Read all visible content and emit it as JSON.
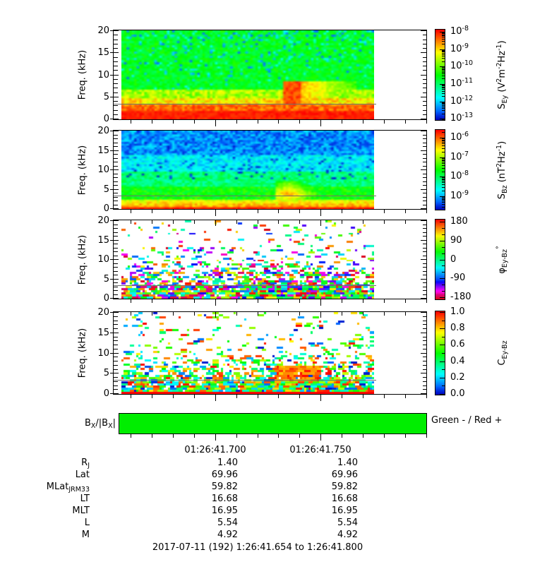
{
  "footer": "2017-07-11 (192) 1:26:41.654 to 1:26:41.800",
  "time_axis": {
    "start_label": "1:26:41.654",
    "end_label": "1:26:41.800",
    "major_ticks": [
      {
        "label": "01:26:41.700",
        "frac": 0.3151
      },
      {
        "label": "01:26:41.750",
        "frac": 0.6575
      }
    ]
  },
  "freq_axis": {
    "label": "Freq. (kHz)",
    "tick_labels": [
      "0",
      "5",
      "10",
      "15",
      "20"
    ],
    "range_khz": [
      0,
      20
    ]
  },
  "marker_line_khz": 3.5,
  "panels": [
    {
      "id": "sey",
      "colorbar": {
        "scale": "log",
        "base": "10",
        "exponents": [
          "-8",
          "-9",
          "-10",
          "-11",
          "-12",
          "-13"
        ],
        "fracs": [
          0.023,
          0.215,
          0.408,
          0.6,
          0.793,
          0.985
        ],
        "label_segments": [
          [
            "n",
            "S"
          ],
          [
            "sub",
            "Ey"
          ],
          [
            "n",
            " (V"
          ],
          [
            "sup",
            "2"
          ],
          [
            "n",
            "m"
          ],
          [
            "sup",
            "-2"
          ],
          [
            "n",
            "Hz"
          ],
          [
            "sup",
            "-1"
          ],
          [
            "n",
            ")"
          ]
        ]
      }
    },
    {
      "id": "sbz",
      "colorbar": {
        "scale": "log",
        "base": "10",
        "exponents": [
          "-6",
          "-7",
          "-8",
          "-9"
        ],
        "fracs": [
          0.097,
          0.345,
          0.584,
          0.832
        ],
        "label_segments": [
          [
            "n",
            "S"
          ],
          [
            "sub",
            "Bz"
          ],
          [
            "n",
            " (nT"
          ],
          [
            "sup",
            "2"
          ],
          [
            "n",
            "Hz"
          ],
          [
            "sup",
            "-1"
          ],
          [
            "n",
            ")"
          ]
        ]
      }
    },
    {
      "id": "phase",
      "colorbar": {
        "scale": "linear",
        "tick_labels": [
          "180",
          "90",
          "0",
          "-90",
          "-180"
        ],
        "fracs": [
          0.03,
          0.265,
          0.5,
          0.735,
          0.97
        ],
        "minors_between": 2,
        "label_segments": [
          [
            "n",
            "φ"
          ],
          [
            "sub",
            "Ey-Bz"
          ],
          [
            "sup",
            "°"
          ]
        ]
      }
    },
    {
      "id": "coh",
      "colorbar": {
        "scale": "linear",
        "tick_labels": [
          "1.0",
          "0.8",
          "0.6",
          "0.4",
          "0.2",
          "0.0"
        ],
        "fracs": [
          0.01,
          0.206,
          0.402,
          0.598,
          0.794,
          0.99
        ],
        "minors_between": 1,
        "label_segments": [
          [
            "n",
            "C"
          ],
          [
            "sub",
            "Ey-Bz"
          ]
        ]
      }
    }
  ],
  "bx_bar": {
    "label_segments": [
      [
        "n",
        "B"
      ],
      [
        "sub",
        "X"
      ],
      [
        "n",
        "/|B"
      ],
      [
        "sub",
        "X"
      ],
      [
        "n",
        "|"
      ]
    ],
    "legend": "Green - / Red +",
    "color": "#00ee00",
    "value": "negative (green) for entire interval"
  },
  "ephemeris": {
    "rows": [
      {
        "label_segments": [
          [
            "n",
            "R"
          ],
          [
            "sub",
            "J"
          ]
        ],
        "values": [
          "1.40",
          "1.40"
        ]
      },
      {
        "label_segments": [
          [
            "n",
            "Lat"
          ]
        ],
        "values": [
          "69.96",
          "69.96"
        ]
      },
      {
        "label_segments": [
          [
            "n",
            "MLat"
          ],
          [
            "sub",
            "JRM33"
          ]
        ],
        "values": [
          "59.82",
          "59.82"
        ]
      },
      {
        "label_segments": [
          [
            "n",
            "LT"
          ]
        ],
        "values": [
          "16.68",
          "16.68"
        ]
      },
      {
        "label_segments": [
          [
            "n",
            "MLT"
          ]
        ],
        "values": [
          "16.95",
          "16.95"
        ]
      },
      {
        "label_segments": [
          [
            "n",
            "L"
          ]
        ],
        "values": [
          "5.54",
          "5.54"
        ]
      },
      {
        "label_segments": [
          [
            "n",
            "M"
          ]
        ],
        "values": [
          "4.92",
          "4.92"
        ]
      }
    ]
  },
  "chart_data": [
    {
      "type": "heatmap",
      "name": "S_Ey spectrogram",
      "units": "V^2 m^-2 Hz^-1",
      "x_range": [
        "01:26:41.654",
        "01:26:41.800"
      ],
      "data_end": "01:26:41.775",
      "y_range_khz": [
        0,
        20
      ],
      "color_scale": "log10",
      "color_range": [
        "1e-13",
        "1e-8"
      ],
      "marker_line_khz": 3.5,
      "description": "Intense red broadband below ~3.5 kHz, orange/yellow band 3.5-7 kHz, green with dark-blue speckles above 8 kHz; bright red rising-tone burst near 01:26:41.740-41.760 spanning ~4-9 kHz; white (no data) after 01:26:41.775."
    },
    {
      "type": "heatmap",
      "name": "S_Bz spectrogram",
      "units": "nT^2 Hz^-1",
      "x_range": [
        "01:26:41.654",
        "01:26:41.800"
      ],
      "data_end": "01:26:41.775",
      "y_range_khz": [
        0,
        20
      ],
      "color_scale": "log10",
      "color_range": [
        "1e-9.7",
        "1e-5.7"
      ],
      "marker_line_khz": 3.5,
      "description": "Dark navy/black speckle above ~12 kHz, cyan-green 3-10 kHz, yellow-orange band 1-3 kHz, red strip below 1 kHz; orange hook-shaped burst 2-7 kHz near 01:26:41.740-41.755."
    },
    {
      "type": "heatmap",
      "name": "phase Ey-Bz",
      "units": "deg",
      "x_range": [
        "01:26:41.654",
        "01:26:41.800"
      ],
      "data_end": "01:26:41.775",
      "y_range_khz": [
        0,
        20
      ],
      "color_scale": "linear",
      "color_range": [
        -180,
        180
      ],
      "marker_line_khz": 3.5,
      "description": "White background with randomly colored phase speckles; dense below ~5 kHz, sparse above 10 kHz."
    },
    {
      "type": "heatmap",
      "name": "coherence Ey-Bz",
      "units": "",
      "x_range": [
        "01:26:41.654",
        "01:26:41.800"
      ],
      "data_end": "01:26:41.775",
      "y_range_khz": [
        0,
        20
      ],
      "color_scale": "linear",
      "color_range": [
        0,
        1
      ],
      "marker_line_khz": 3.5,
      "description": "White background with mixed coherence speckles dense below ~5 kHz, solid red line at 0 kHz, high-coherence red patch 4-7 kHz near 01:26:41.740-41.760."
    },
    {
      "type": "bar",
      "name": "BX/|BX|",
      "categories": [
        "01:26:41.654 - 01:26:41.800"
      ],
      "values": [
        -1
      ],
      "legend": "Green - / Red +",
      "note": "green = negative BX over whole interval"
    },
    {
      "type": "table",
      "name": "ephemeris",
      "columns": [
        "01:26:41.700",
        "01:26:41.750"
      ],
      "rows": [
        [
          "RJ",
          "1.40",
          "1.40"
        ],
        [
          "Lat",
          "69.96",
          "69.96"
        ],
        [
          "MLatJRM33",
          "59.82",
          "59.82"
        ],
        [
          "LT",
          "16.68",
          "16.68"
        ],
        [
          "MLT",
          "16.95",
          "16.95"
        ],
        [
          "L",
          "5.54",
          "5.54"
        ],
        [
          "M",
          "4.92",
          "4.92"
        ]
      ],
      "title": "2017-07-11 (192) 1:26:41.654 to 1:26:41.800"
    }
  ]
}
